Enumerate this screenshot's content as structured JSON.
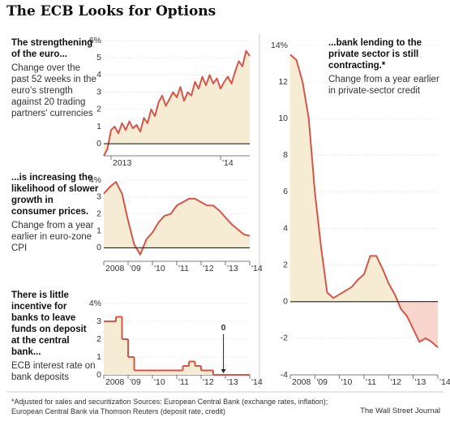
{
  "title": "The ECB Looks for Options",
  "footnote": "*Adjusted for sales and securitization   Sources: European Central Bank (exchange rates, inflation); European Central Bank via Thomson Reuters (deposit rate, credit)",
  "credit": "The Wall Street Journal",
  "chart_data": [
    {
      "type": "line",
      "title": "The strengthening of the euro...",
      "subtitle": "Change over the past 52 weeks in the euro's strength against 20 trading partners' currencies",
      "categories": [
        null,
        null,
        "2013",
        null,
        null,
        null,
        null,
        null,
        null,
        null,
        null,
        null,
        null,
        null,
        null,
        null,
        null,
        null,
        null,
        null,
        null,
        null,
        null,
        null,
        null,
        null,
        null,
        null,
        null,
        null,
        null,
        null,
        "'14",
        null,
        null,
        null,
        null,
        null,
        null,
        null,
        null
      ],
      "series": [
        {
          "name": "Euro strength",
          "color": "#d4564a",
          "values": [
            -0.7,
            -0.3,
            0.8,
            1.0,
            0.6,
            1.2,
            0.8,
            1.3,
            0.9,
            1.1,
            0.7,
            1.5,
            1.2,
            2.0,
            1.6,
            2.4,
            2.8,
            2.2,
            2.6,
            3.0,
            2.7,
            3.3,
            2.5,
            3.0,
            2.8,
            3.6,
            3.2,
            3.9,
            3.4,
            4.0,
            3.5,
            3.8,
            3.2,
            3.6,
            3.9,
            3.5,
            4.2,
            4.8,
            4.5,
            5.4,
            5.1
          ]
        }
      ],
      "ylim": [
        -0.7,
        6
      ],
      "yticks": [
        0,
        1,
        2,
        3,
        4,
        5,
        {
          "value": 6,
          "label": "6%"
        }
      ],
      "fill": "#f6ecd3",
      "grid": true
    },
    {
      "type": "line",
      "title": "...is increasing the likelihood of slower growth in consumer prices.",
      "subtitle": "Change from a year earlier in euro-zone CPI",
      "categories": [
        "2008",
        null,
        null,
        null,
        "'09",
        null,
        null,
        null,
        "'10",
        null,
        null,
        null,
        "'11",
        null,
        null,
        null,
        "'12",
        null,
        null,
        null,
        "'13",
        null,
        null,
        null,
        "'14"
      ],
      "series": [
        {
          "name": "CPI",
          "color": "#d4564a",
          "values": [
            3.2,
            3.6,
            3.9,
            3.2,
            1.6,
            0.2,
            -0.4,
            0.5,
            0.9,
            1.5,
            1.9,
            2.0,
            2.5,
            2.7,
            2.9,
            2.9,
            2.7,
            2.5,
            2.5,
            2.2,
            1.8,
            1.4,
            1.1,
            0.8,
            0.7
          ]
        }
      ],
      "ylim": [
        -0.8,
        4
      ],
      "yticks": [
        0,
        1,
        2,
        3,
        {
          "value": 4,
          "label": "4%"
        }
      ],
      "fill": "#f6ecd3",
      "grid": true
    },
    {
      "type": "step",
      "title": "There is little incentive for banks to leave funds on deposit at the central bank...",
      "subtitle": "ECB interest rate on bank deposits",
      "categories": [
        "2008",
        null,
        null,
        null,
        "'09",
        null,
        null,
        null,
        "'10",
        null,
        null,
        null,
        "'11",
        null,
        null,
        null,
        "'12",
        null,
        null,
        null,
        "'13",
        null,
        null,
        null,
        "'14"
      ],
      "series": [
        {
          "name": "Deposit rate",
          "color": "#d4564a",
          "values": [
            3.0,
            3.0,
            3.25,
            2.0,
            1.0,
            0.25,
            0.25,
            0.25,
            0.25,
            0.25,
            0.25,
            0.25,
            0.25,
            0.5,
            0.75,
            0.5,
            0.25,
            0.25,
            0,
            0,
            0,
            0,
            0,
            0,
            0
          ]
        }
      ],
      "ylim": [
        0,
        4
      ],
      "yticks": [
        0,
        1,
        2,
        3,
        {
          "value": 4,
          "label": "4%"
        }
      ],
      "fill": "#f6ecd3",
      "annotation": "0",
      "grid": true
    },
    {
      "type": "line",
      "title": "...bank lending to the private sector is still contracting.*",
      "subtitle": "Change from a year earlier in private-sector credit",
      "categories": [
        "2008",
        null,
        null,
        null,
        "'09",
        null,
        null,
        null,
        "'10",
        null,
        null,
        null,
        "'11",
        null,
        null,
        null,
        "'12",
        null,
        null,
        null,
        "'13",
        null,
        null,
        null,
        "'14"
      ],
      "series": [
        {
          "name": "Private-sector credit",
          "color": "#d4564a",
          "values": [
            13.5,
            13.2,
            12.0,
            10.0,
            6.0,
            3.0,
            0.5,
            0.2,
            0.4,
            0.6,
            0.8,
            1.2,
            1.5,
            2.5,
            2.5,
            1.8,
            1.0,
            0.4,
            -0.4,
            -0.8,
            -1.5,
            -2.2,
            -2.0,
            -2.2,
            -2.5
          ]
        }
      ],
      "ylim": [
        -4,
        14
      ],
      "yticks": [
        -4,
        -2,
        0,
        2,
        4,
        6,
        8,
        10,
        12,
        {
          "value": 14,
          "label": "14%"
        }
      ],
      "fill": "#f6ecd3",
      "negative_fill": "#f8d5cd",
      "grid": true
    }
  ]
}
